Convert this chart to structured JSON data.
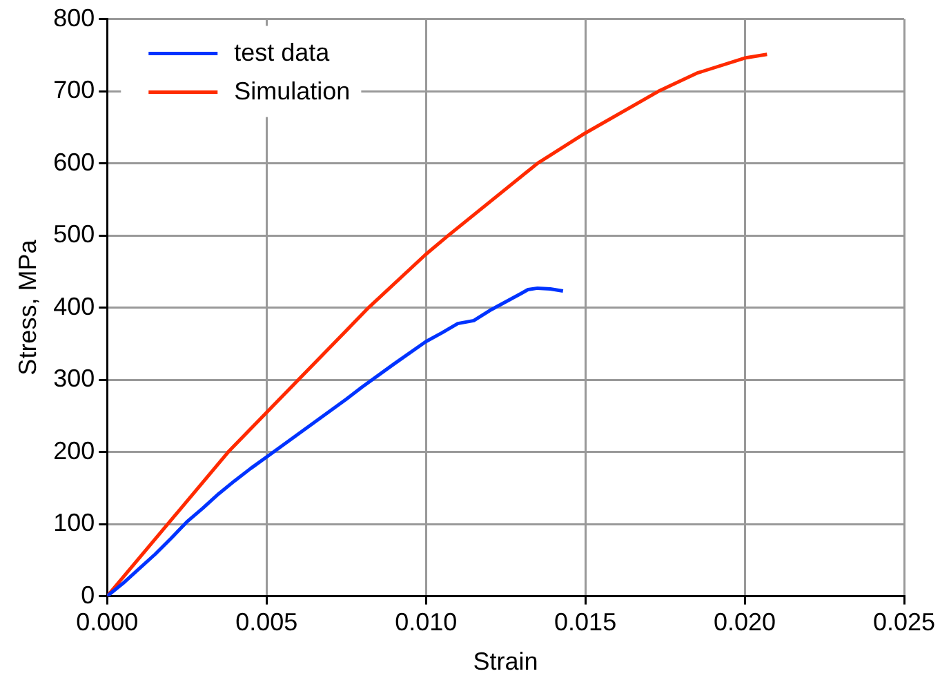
{
  "chart_data": {
    "type": "line",
    "xlabel": "Strain",
    "ylabel": "Stress, MPa",
    "xlim": [
      0,
      0.025
    ],
    "xticks": [
      {
        "value": 0,
        "label": "0.000"
      },
      {
        "value": 0.005,
        "label": "0.005"
      },
      {
        "value": 0.01,
        "label": "0.010"
      },
      {
        "value": 0.015,
        "label": "0.015"
      },
      {
        "value": 0.02,
        "label": "0.020"
      },
      {
        "value": 0.025,
        "label": "0.025"
      }
    ],
    "ylim": [
      0,
      800
    ],
    "yticks": [
      0,
      100,
      200,
      300,
      400,
      500,
      600,
      700,
      800
    ],
    "grid": true,
    "legend": "top left",
    "marker": "none",
    "line_style": "solid",
    "series": [
      {
        "name": "test data",
        "color": "#0033ff",
        "x": [
          0,
          0.0005,
          0.001,
          0.0015,
          0.002,
          0.0025,
          0.003,
          0.0035,
          0.004,
          0.0045,
          0.005,
          0.006,
          0.007,
          0.0075,
          0.008,
          0.009,
          0.01,
          0.0105,
          0.011,
          0.0115,
          0.012,
          0.0125,
          0.013,
          0.0132,
          0.0135,
          0.0139,
          0.0143
        ],
        "values": [
          0,
          18,
          38,
          58,
          80,
          103,
          122,
          142,
          160,
          177,
          193,
          225,
          257,
          273,
          290,
          322,
          353,
          365,
          378,
          382,
          396,
          408,
          420,
          425,
          427,
          426,
          423
        ]
      },
      {
        "name": "Simulation",
        "color": "#ff2a00",
        "x": [
          0,
          0.0019,
          0.0038,
          0.006,
          0.0082,
          0.01,
          0.0107,
          0.0135,
          0.015,
          0.0173,
          0.0185,
          0.02,
          0.0207
        ],
        "values": [
          0,
          100,
          200,
          300,
          400,
          474,
          500,
          600,
          642,
          700,
          725,
          746,
          751
        ]
      }
    ]
  }
}
